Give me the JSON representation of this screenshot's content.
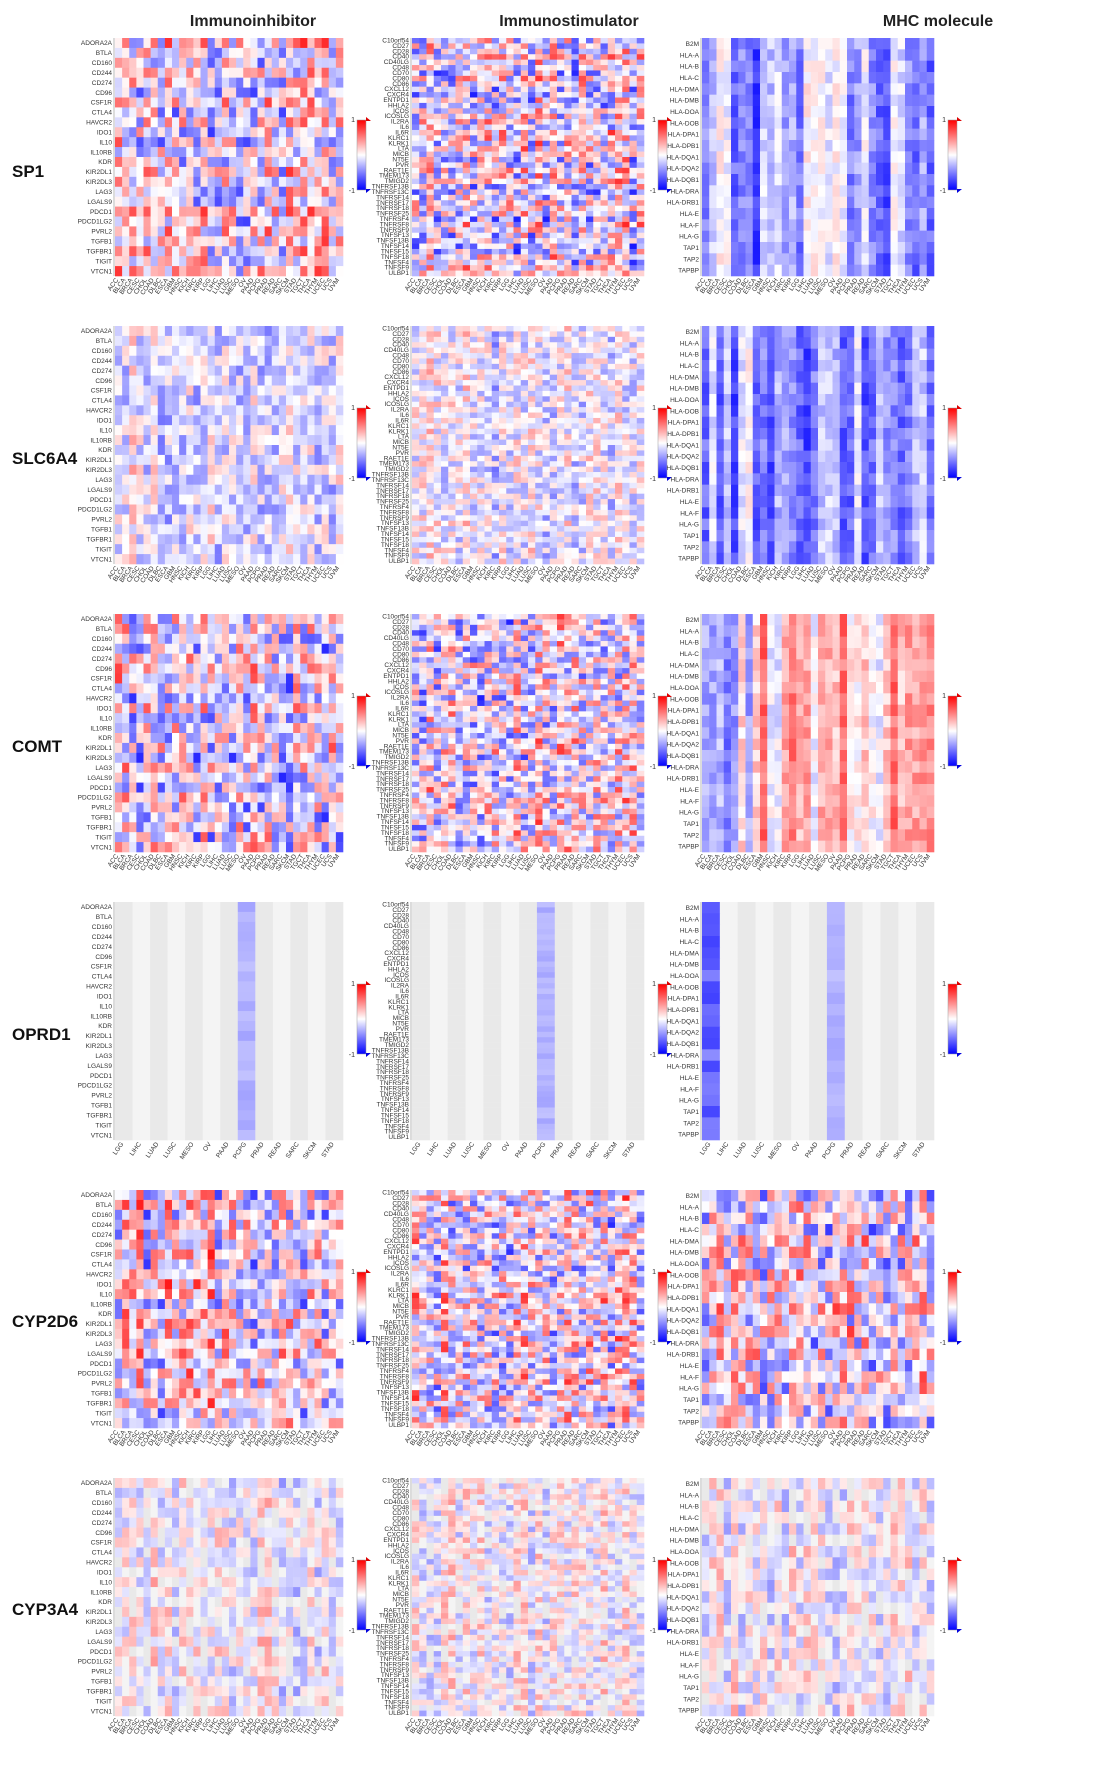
{
  "figure": {
    "column_titles": [
      "Immunoinhibitor",
      "Immunostimulator",
      "MHC molecule"
    ],
    "genes": [
      "SP1",
      "SLC6A4",
      "COMT",
      "OPRD1",
      "CYP2D6",
      "CYP3A4"
    ],
    "colorbar": {
      "max_label": "1",
      "min_label": "-1",
      "colors": [
        "#ff0000",
        "#ffffff",
        "#0000ff"
      ]
    }
  },
  "chart_data": {
    "type": "heatmap",
    "value_range": [
      -1,
      1
    ],
    "cancer_types_full": [
      "ACC",
      "BLCA",
      "BRCA",
      "CESC",
      "CHOL",
      "COAD",
      "DLBC",
      "ESCA",
      "GBM",
      "HNSC",
      "KICH",
      "KIRC",
      "KIRP",
      "LGG",
      "LIHC",
      "LUAD",
      "LUSC",
      "MESO",
      "OV",
      "PAAD",
      "PCPG",
      "PRAD",
      "READ",
      "SARC",
      "SKCM",
      "STAD",
      "TGCT",
      "THCA",
      "THYM",
      "UCEC",
      "UCS",
      "UVM"
    ],
    "cancer_types_opr": [
      "LGG",
      "LIHC",
      "LUAD",
      "LUSC",
      "MESO",
      "OV",
      "PAAD",
      "PCPG",
      "PRAD",
      "READ",
      "SARC",
      "SKCM",
      "STAD"
    ],
    "immunoinhibitor_genes": [
      "ADORA2A",
      "BTLA",
      "CD160",
      "CD244",
      "CD274",
      "CD96",
      "CSF1R",
      "CTLA4",
      "HAVCR2",
      "IDO1",
      "IL10",
      "IL10RB",
      "KDR",
      "KIR2DL1",
      "KIR2DL3",
      "LAG3",
      "LGALS9",
      "PDCD1",
      "PDCD1LG2",
      "PVRL2",
      "TGFB1",
      "TGFBR1",
      "TIGIT",
      "VTCN1"
    ],
    "immunostimulator_genes": [
      "C10orf54",
      "CD27",
      "CD28",
      "CD40",
      "CD40LG",
      "CD48",
      "CD70",
      "CD80",
      "CD86",
      "CXCL12",
      "CXCR4",
      "ENTPD1",
      "HHLA2",
      "ICOS",
      "ICOSLG",
      "IL2RA",
      "IL6",
      "IL6R",
      "KLRC1",
      "KLRK1",
      "LTA",
      "MICB",
      "NT5E",
      "PVR",
      "RAET1E",
      "TMEM173",
      "TMIGD2",
      "TNFRSF13B",
      "TNFRSF13C",
      "TNFRSF14",
      "TNFRSF17",
      "TNFRSF18",
      "TNFRSF25",
      "TNFRSF4",
      "TNFRSF8",
      "TNFRSF9",
      "TNFSF13",
      "TNFSF13B",
      "TNFSF14",
      "TNFSF15",
      "TNFSF18",
      "TNFSF4",
      "TNFSF9",
      "ULBP1"
    ],
    "mhc_genes": [
      "B2M",
      "HLA-A",
      "HLA-B",
      "HLA-C",
      "HLA-DMA",
      "HLA-DMB",
      "HLA-DOA",
      "HLA-DOB",
      "HLA-DPA1",
      "HLA-DPB1",
      "HLA-DQA1",
      "HLA-DQA2",
      "HLA-DQB1",
      "HLA-DRA",
      "HLA-DRB1",
      "HLA-E",
      "HLA-F",
      "HLA-G",
      "TAP1",
      "TAP2",
      "TAPBP"
    ],
    "cell_value_note": ""
  }
}
